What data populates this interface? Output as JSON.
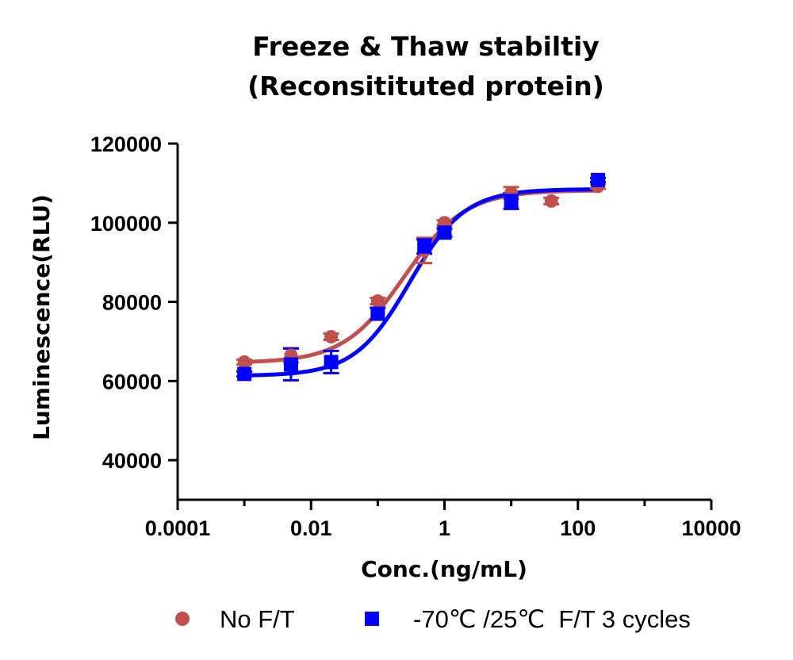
{
  "chart_data": {
    "type": "scatter",
    "title": [
      "Freeze & Thaw stabiltiy",
      "(Reconsitituted protein)"
    ],
    "xlabel": "Conc.(ng/mL)",
    "ylabel": "Luminescence(RLU)",
    "xscale": "log",
    "xlim": [
      0.0001,
      10000
    ],
    "ylim": [
      30000,
      120000
    ],
    "xticks": [
      0.0001,
      0.01,
      1,
      100,
      10000
    ],
    "xtick_labels": [
      "0.0001",
      "0.01",
      "1",
      "100",
      "10000"
    ],
    "yticks": [
      40000,
      60000,
      80000,
      100000,
      120000
    ],
    "ytick_labels": [
      "40000",
      "60000",
      "80000",
      "100000",
      "120000"
    ],
    "grid": false,
    "legend_position": "bottom",
    "series": [
      {
        "name": "No F/T",
        "marker": "circle",
        "color": "#c0504d",
        "points": [
          {
            "x": 0.001,
            "y": 64800,
            "err": 600
          },
          {
            "x": 0.005,
            "y": 66500,
            "err": 1800
          },
          {
            "x": 0.02,
            "y": 71200,
            "err": 800
          },
          {
            "x": 0.1,
            "y": 80200,
            "err": 800
          },
          {
            "x": 0.5,
            "y": 93000,
            "err": 3200
          },
          {
            "x": 1,
            "y": 100000,
            "err": 600
          },
          {
            "x": 10,
            "y": 107500,
            "err": 1500
          },
          {
            "x": 40,
            "y": 105500,
            "err": 800
          },
          {
            "x": 200,
            "y": 109200,
            "err": 600
          }
        ],
        "fit": {
          "bottom": 64600,
          "top": 108200,
          "ec50": 0.25,
          "hill": 0.95
        }
      },
      {
        "name": "-70℃ /25℃  F/T 3 cycles",
        "marker": "square",
        "color": "#0000ff",
        "points": [
          {
            "x": 0.001,
            "y": 61800,
            "err": 600
          },
          {
            "x": 0.005,
            "y": 64200,
            "err": 4000
          },
          {
            "x": 0.02,
            "y": 64800,
            "err": 2800
          },
          {
            "x": 0.1,
            "y": 77000,
            "err": 1500
          },
          {
            "x": 0.5,
            "y": 94000,
            "err": 1800
          },
          {
            "x": 1,
            "y": 97500,
            "err": 1000
          },
          {
            "x": 10,
            "y": 105500,
            "err": 2000
          },
          {
            "x": 200,
            "y": 110800,
            "err": 500
          }
        ],
        "fit": {
          "bottom": 61300,
          "top": 108500,
          "ec50": 0.3,
          "hill": 1.05
        }
      }
    ]
  }
}
